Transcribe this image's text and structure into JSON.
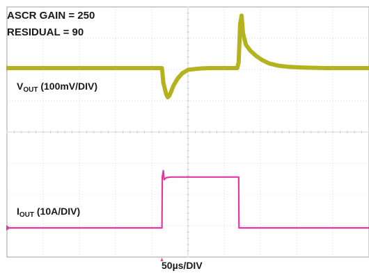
{
  "annotations": {
    "gain": "ASCR GAIN = 250",
    "residual": "RESIDUAL = 90"
  },
  "chart_data": {
    "type": "line",
    "x_unit": "µs",
    "time_scale": "50µs/DIV",
    "grid": true,
    "divisions": {
      "x": 10,
      "y": 8
    },
    "colors": {
      "vout": "#b4b21e",
      "iout": "#e0399a",
      "grid": "#c8c8c8",
      "frame": "#a0a0a0"
    },
    "series": [
      {
        "name_main": "V",
        "name_sub": "OUT",
        "name_rest": " (100mV/DIV)",
        "scale": "100mV/DIV",
        "x": [
          0,
          214,
          216,
          218,
          220,
          222,
          224,
          226,
          230,
          236,
          242,
          250,
          260,
          270,
          280,
          290,
          300,
          310,
          318,
          320,
          322,
          324,
          326,
          330,
          336,
          344,
          352,
          362,
          375,
          390,
          410,
          440,
          470,
          500
        ],
        "y": [
          0,
          0,
          -50,
          -70,
          -90,
          -100,
          -95,
          -85,
          -60,
          -35,
          -18,
          -6,
          -3,
          -1,
          0,
          0,
          0,
          0,
          0,
          20,
          150,
          180,
          120,
          80,
          60,
          42,
          28,
          16,
          8,
          4,
          2,
          0,
          0,
          0
        ]
      },
      {
        "name_main": "I",
        "name_sub": "OUT",
        "name_rest": " (10A/DIV)",
        "scale": "10A/DIV",
        "x": [
          0,
          214,
          214.5,
          216,
          217,
          220,
          226,
          240,
          260,
          300,
          320,
          320.5,
          500
        ],
        "y": [
          0,
          0,
          40,
          45,
          38,
          39.5,
          40,
          40,
          40,
          40,
          40,
          0,
          0
        ]
      }
    ]
  }
}
